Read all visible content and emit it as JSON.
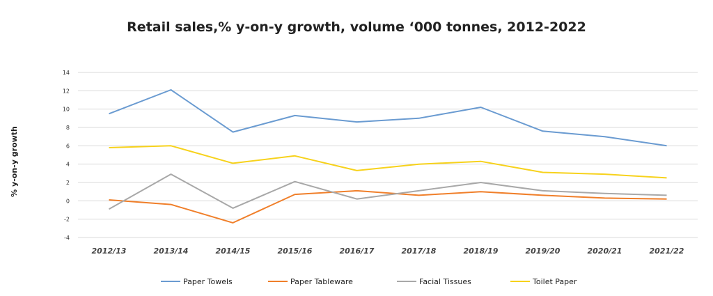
{
  "chart_data": {
    "type": "line",
    "title": "Retail sales,% y-on-y growth, volume ‘000 tonnes, 2012-2022",
    "ylabel": "% y-on-y growth",
    "xlabel": "",
    "categories": [
      "2012/13",
      "2013/14",
      "2014/15",
      "2015/16",
      "2016/17",
      "2017/18",
      "2018/19",
      "2019/20",
      "2020/21",
      "2021/22"
    ],
    "ylim": [
      -4,
      14
    ],
    "yticks": [
      "14",
      "12",
      "10",
      "8",
      "6",
      "4",
      "2",
      "0",
      "-2",
      "-4"
    ],
    "ytick_values": [
      14,
      12,
      10,
      8,
      6,
      4,
      2,
      0,
      -2,
      -4
    ],
    "grid": true,
    "legend_position": "bottom",
    "series": [
      {
        "name": "Paper Towels",
        "color": "#6a9bd1",
        "values": [
          9.5,
          12.1,
          7.5,
          9.3,
          8.6,
          9.0,
          10.2,
          7.6,
          7.0,
          6.0
        ]
      },
      {
        "name": "Paper Tableware",
        "color": "#f07f2a",
        "values": [
          0.1,
          -0.4,
          -2.4,
          0.7,
          1.1,
          0.6,
          1.0,
          0.6,
          0.3,
          0.2
        ]
      },
      {
        "name": "Facial Tissues",
        "color": "#a8a8a8",
        "values": [
          -0.9,
          2.9,
          -0.8,
          2.1,
          0.2,
          1.1,
          2.0,
          1.1,
          0.8,
          0.6
        ]
      },
      {
        "name": "Toilet Paper",
        "color": "#f7d21c",
        "values": [
          5.8,
          6.0,
          4.1,
          4.9,
          3.3,
          4.0,
          4.3,
          3.1,
          2.9,
          2.5
        ]
      }
    ]
  }
}
